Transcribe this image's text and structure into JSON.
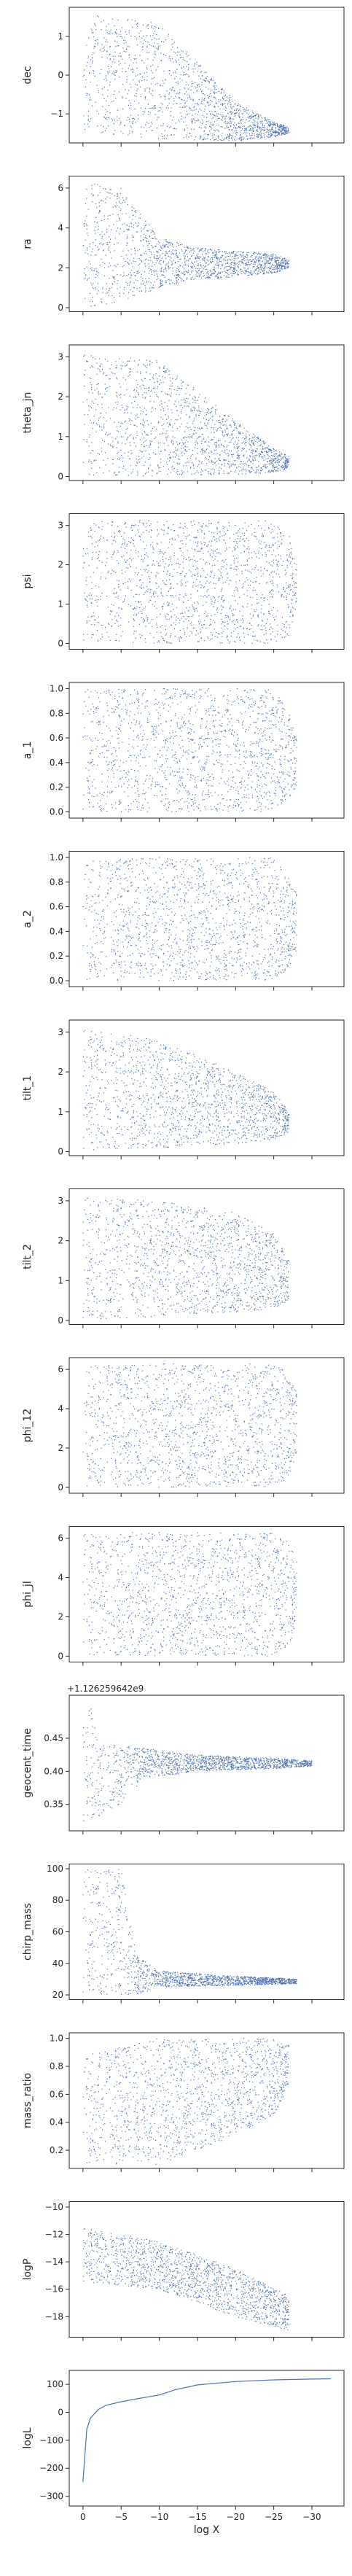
{
  "colors": {
    "series": "#4c72b0",
    "axis": "#262626",
    "background": "#ffffff"
  },
  "chart_data": [
    {
      "type": "scatter",
      "ylabel": "dec",
      "ylim": [
        -1.75,
        1.75
      ],
      "yticks": [
        1,
        0,
        -1
      ],
      "ytick_labels": [
        "1",
        "0",
        "−1"
      ],
      "shape": [
        [
          0,
          -1.45,
          1.6
        ],
        [
          -10,
          -1.65,
          1.35
        ],
        [
          -20,
          -1.7,
          -0.7
        ],
        [
          -25,
          -1.6,
          -1.2
        ],
        [
          -27,
          -1.5,
          -1.35
        ]
      ]
    },
    {
      "type": "scatter",
      "ylabel": "ra",
      "ylim": [
        -0.2,
        6.6
      ],
      "yticks": [
        6,
        4,
        2,
        0
      ],
      "ytick_labels": [
        "6",
        "4",
        "2",
        "0"
      ],
      "shape": [
        [
          0,
          0.0,
          6.3
        ],
        [
          -5,
          0.3,
          6.0
        ],
        [
          -10,
          1.0,
          3.5
        ],
        [
          -15,
          1.4,
          3.0
        ],
        [
          -25,
          1.7,
          2.7
        ],
        [
          -27,
          2.0,
          2.4
        ]
      ]
    },
    {
      "type": "scatter",
      "ylabel": "theta_jn",
      "ylim": [
        -0.1,
        3.3
      ],
      "yticks": [
        3,
        2,
        1,
        0
      ],
      "ytick_labels": [
        "3",
        "2",
        "1",
        "0"
      ],
      "shape": [
        [
          0,
          0.0,
          3.1
        ],
        [
          -10,
          0.0,
          2.9
        ],
        [
          -20,
          0.05,
          1.4
        ],
        [
          -25,
          0.1,
          0.7
        ],
        [
          -27,
          0.2,
          0.5
        ]
      ]
    },
    {
      "type": "scatter",
      "ylabel": "psi",
      "ylim": [
        -0.15,
        3.3
      ],
      "yticks": [
        3,
        2,
        1,
        0
      ],
      "ytick_labels": [
        "3",
        "2",
        "1",
        "0"
      ],
      "shape": [
        [
          0,
          0.0,
          3.14
        ],
        [
          -25,
          0.0,
          3.14
        ],
        [
          -27,
          0.2,
          2.8
        ],
        [
          -28,
          1.0,
          2.0
        ]
      ]
    },
    {
      "type": "scatter",
      "ylabel": "a_1",
      "ylim": [
        -0.05,
        1.05
      ],
      "yticks": [
        1.0,
        0.8,
        0.6,
        0.4,
        0.2,
        0.0
      ],
      "ytick_labels": [
        "1.0",
        "0.8",
        "0.6",
        "0.4",
        "0.2",
        "0.0"
      ],
      "shape": [
        [
          0,
          0.0,
          1.0
        ],
        [
          -25,
          0.0,
          1.0
        ],
        [
          -27,
          0.1,
          0.8
        ],
        [
          -28,
          0.2,
          0.6
        ]
      ]
    },
    {
      "type": "scatter",
      "ylabel": "a_2",
      "ylim": [
        -0.05,
        1.05
      ],
      "yticks": [
        1.0,
        0.8,
        0.6,
        0.4,
        0.2,
        0.0
      ],
      "ytick_labels": [
        "1.0",
        "0.8",
        "0.6",
        "0.4",
        "0.2",
        "0.0"
      ],
      "shape": [
        [
          0,
          0.0,
          1.0
        ],
        [
          -25,
          0.0,
          1.0
        ],
        [
          -27,
          0.1,
          0.85
        ],
        [
          -28,
          0.2,
          0.7
        ]
      ]
    },
    {
      "type": "scatter",
      "ylabel": "tilt_1",
      "ylim": [
        -0.1,
        3.3
      ],
      "yticks": [
        3,
        2,
        1,
        0
      ],
      "ytick_labels": [
        "3",
        "2",
        "1",
        "0"
      ],
      "shape": [
        [
          0,
          0.0,
          3.1
        ],
        [
          -10,
          0.1,
          2.8
        ],
        [
          -20,
          0.2,
          2.0
        ],
        [
          -25,
          0.3,
          1.5
        ],
        [
          -27,
          0.5,
          1.0
        ]
      ]
    },
    {
      "type": "scatter",
      "ylabel": "tilt_2",
      "ylim": [
        -0.1,
        3.3
      ],
      "yticks": [
        3,
        2,
        1,
        0
      ],
      "ytick_labels": [
        "3",
        "2",
        "1",
        "0"
      ],
      "shape": [
        [
          0,
          0.0,
          3.1
        ],
        [
          -10,
          0.1,
          3.0
        ],
        [
          -20,
          0.2,
          2.7
        ],
        [
          -25,
          0.3,
          2.2
        ],
        [
          -27,
          0.5,
          1.5
        ]
      ]
    },
    {
      "type": "scatter",
      "ylabel": "phi_12",
      "ylim": [
        -0.3,
        6.6
      ],
      "yticks": [
        6,
        4,
        2,
        0
      ],
      "ytick_labels": [
        "6",
        "4",
        "2",
        "0"
      ],
      "shape": [
        [
          0,
          0.0,
          6.28
        ],
        [
          -25,
          0.0,
          6.28
        ],
        [
          -27,
          0.5,
          5.8
        ],
        [
          -28,
          1.5,
          4.8
        ]
      ]
    },
    {
      "type": "scatter",
      "ylabel": "phi_jl",
      "ylim": [
        -0.3,
        6.6
      ],
      "yticks": [
        6,
        4,
        2,
        0
      ],
      "ytick_labels": [
        "6",
        "4",
        "2",
        "0"
      ],
      "shape": [
        [
          0,
          0.0,
          6.28
        ],
        [
          -25,
          0.0,
          6.28
        ],
        [
          -27,
          0.5,
          5.8
        ],
        [
          -28,
          1.5,
          4.8
        ]
      ]
    },
    {
      "type": "scatter",
      "ylabel": "geocent_time",
      "ylim": [
        0.31,
        0.515
      ],
      "yticks": [
        0.45,
        0.4,
        0.35
      ],
      "ytick_labels": [
        "0.45",
        "0.40",
        "0.35"
      ],
      "offset_text": "+1.126259642e9",
      "shape": [
        [
          0,
          0.32,
          0.51
        ],
        [
          -1,
          0.32,
          0.51
        ],
        [
          -2,
          0.33,
          0.44
        ],
        [
          -5,
          0.35,
          0.44
        ],
        [
          -8,
          0.39,
          0.435
        ],
        [
          -15,
          0.4,
          0.425
        ],
        [
          -25,
          0.404,
          0.42
        ],
        [
          -30,
          0.408,
          0.416
        ]
      ]
    },
    {
      "type": "scatter",
      "ylabel": "chirp_mass",
      "ylim": [
        17,
        103
      ],
      "yticks": [
        100,
        80,
        60,
        40,
        20
      ],
      "ytick_labels": [
        "100",
        "80",
        "60",
        "40",
        "20"
      ],
      "shape": [
        [
          0,
          20,
          100
        ],
        [
          -5,
          20,
          100
        ],
        [
          -7,
          20,
          45
        ],
        [
          -10,
          25,
          35
        ],
        [
          -20,
          26,
          32
        ],
        [
          -28,
          27,
          30
        ]
      ]
    },
    {
      "type": "scatter",
      "ylabel": "mass_ratio",
      "ylim": [
        0.07,
        1.04
      ],
      "yticks": [
        1.0,
        0.8,
        0.6,
        0.4,
        0.2
      ],
      "ytick_labels": [
        "1.0",
        "0.8",
        "0.6",
        "0.4",
        "0.2"
      ],
      "shape": [
        [
          0,
          0.1,
          0.9
        ],
        [
          -10,
          0.1,
          1.0
        ],
        [
          -20,
          0.3,
          1.0
        ],
        [
          -25,
          0.45,
          1.0
        ],
        [
          -27,
          0.65,
          0.95
        ]
      ]
    },
    {
      "type": "scatter",
      "ylabel": "logP",
      "ylim": [
        -19.5,
        -9.6
      ],
      "yticks": [
        -10,
        -12,
        -14,
        -16,
        -18
      ],
      "ytick_labels": [
        "−10",
        "−12",
        "−14",
        "−16",
        "−18"
      ],
      "shape": [
        [
          0,
          -15.5,
          -11.5
        ],
        [
          -10,
          -16,
          -12.5
        ],
        [
          -20,
          -18,
          -14.5
        ],
        [
          -27,
          -19,
          -16.5
        ]
      ]
    },
    {
      "type": "line",
      "ylabel": "logL",
      "xlabel": "log X",
      "ylim": [
        -335,
        150
      ],
      "yticks": [
        100,
        0,
        -100,
        -200,
        -300
      ],
      "ytick_labels": [
        "100",
        "0",
        "−100",
        "−200",
        "−300"
      ],
      "x": [
        0,
        -0.5,
        -1,
        -2,
        -3,
        -5,
        -7,
        -10,
        -12,
        -15,
        -20,
        -25,
        -30,
        -32.5
      ],
      "y": [
        -250,
        -60,
        -20,
        10,
        25,
        38,
        48,
        62,
        80,
        98,
        110,
        116,
        119,
        120
      ]
    }
  ],
  "shared_x": {
    "xlim": [
      1.8,
      -34.2
    ],
    "xticks": [
      0,
      -5,
      -10,
      -15,
      -20,
      -25,
      -30
    ],
    "xtick_labels": [
      "0",
      "−5",
      "−10",
      "−15",
      "−20",
      "−25",
      "−30"
    ]
  }
}
